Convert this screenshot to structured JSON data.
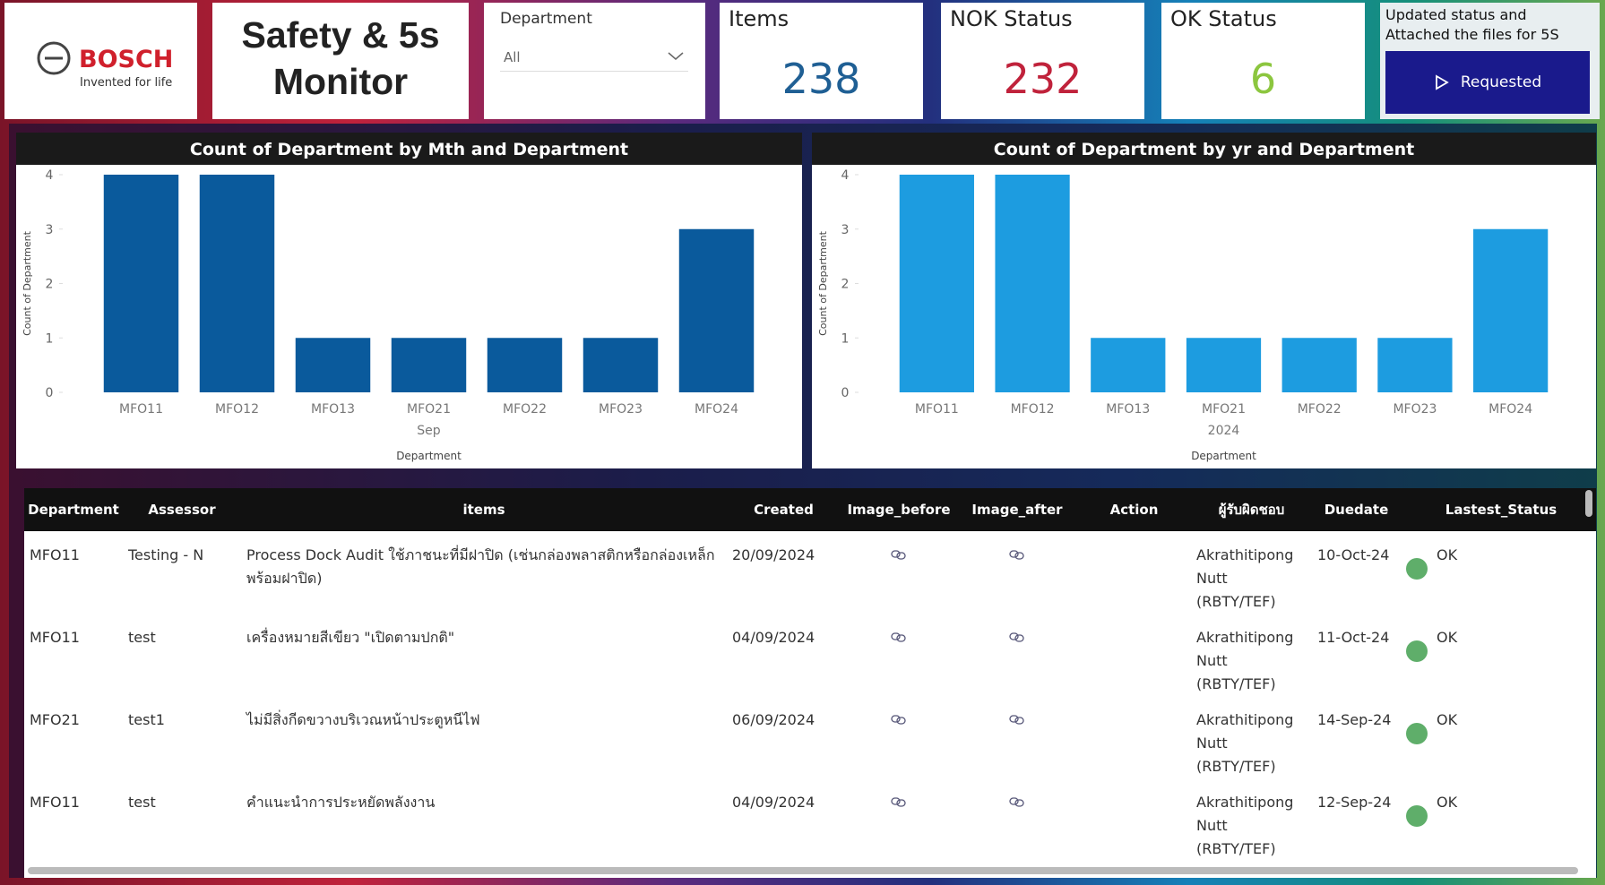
{
  "header": {
    "brand": "BOSCH",
    "tagline": "Invented for life",
    "title": "Safety & 5s Monitor"
  },
  "filter": {
    "label": "Department",
    "value": "All"
  },
  "kpis": [
    {
      "label": "Items",
      "value": 238,
      "color": "#1f5f94"
    },
    {
      "label": "NOK Status",
      "value": 232,
      "color": "#c0223b"
    },
    {
      "label": "OK Status",
      "value": 6,
      "color": "#8cc63f"
    }
  ],
  "action": {
    "text": "Updated status and Attached the files for 5S",
    "button": "Requested"
  },
  "chart_data": [
    {
      "type": "bar",
      "title": "Count of Department by Mth and Department",
      "categories": [
        "MFO11",
        "MFO12",
        "MFO13",
        "MFO21",
        "MFO22",
        "MFO23",
        "MFO24"
      ],
      "group_label": "Sep",
      "x_label": "Department",
      "y_label": "Count of Department",
      "values": [
        4,
        4,
        1,
        1,
        1,
        1,
        3
      ],
      "color": "#0a5a9c",
      "ylim": [
        0,
        4
      ],
      "yticks": [
        0,
        1,
        2,
        3,
        4
      ]
    },
    {
      "type": "bar",
      "title": "Count of Department by yr and Department",
      "categories": [
        "MFO11",
        "MFO12",
        "MFO13",
        "MFO21",
        "MFO22",
        "MFO23",
        "MFO24"
      ],
      "group_label": "2024",
      "x_label": "Department",
      "y_label": "Count of Department",
      "values": [
        4,
        4,
        1,
        1,
        1,
        1,
        3
      ],
      "color": "#1d9ce0",
      "ylim": [
        0,
        4
      ],
      "yticks": [
        0,
        1,
        2,
        3,
        4
      ]
    }
  ],
  "table": {
    "columns": [
      "Department",
      "Assessor",
      "items",
      "Created",
      "Image_before",
      "Image_after",
      "Action",
      "ผู้รับผิดชอบ",
      "Duedate",
      "Lastest_Status"
    ],
    "rows": [
      {
        "department": "MFO11",
        "assessor": "Testing - N",
        "item": "Process Dock Audit ใช้ภาชนะที่มีฝาปิด (เช่นกล่องพลาสติกหรือกล่องเหล็กพร้อมฝาปิด)",
        "created": "20/09/2024",
        "owner": "Akrathitipong Nutt (RBTY/TEF)",
        "duedate": "10-Oct-24",
        "status": "OK"
      },
      {
        "department": "MFO11",
        "assessor": "test",
        "item": "เครื่องหมายสีเขียว \"เปิดตามปกติ\"",
        "created": "04/09/2024",
        "owner": "Akrathitipong Nutt (RBTY/TEF)",
        "duedate": "11-Oct-24",
        "status": "OK"
      },
      {
        "department": "MFO21",
        "assessor": "test1",
        "item": "ไม่มีสิ่งกีดขวางบริเวณหน้าประตูหนีไฟ",
        "created": "06/09/2024",
        "owner": "Akrathitipong Nutt (RBTY/TEF)",
        "duedate": "14-Sep-24",
        "status": "OK"
      },
      {
        "department": "MFO11",
        "assessor": "test",
        "item": "คำแนะนำการประหยัดพลังงาน",
        "created": "04/09/2024",
        "owner": "Akrathitipong Nutt (RBTY/TEF)",
        "duedate": "12-Sep-24",
        "status": "OK"
      }
    ]
  }
}
